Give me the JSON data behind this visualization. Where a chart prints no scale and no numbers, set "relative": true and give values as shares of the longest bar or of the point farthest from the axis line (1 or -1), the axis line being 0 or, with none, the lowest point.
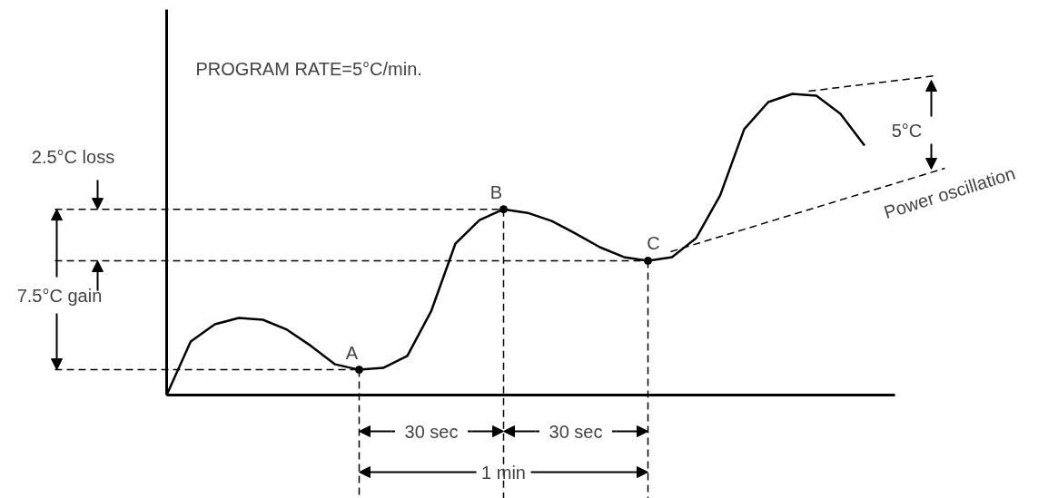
{
  "chart_data": {
    "type": "line",
    "relative": true,
    "tick_labels": false,
    "grid": false,
    "line_style": "solid",
    "marker": "none",
    "categories": [
      null,
      null,
      null,
      null,
      null,
      null,
      null,
      null,
      null,
      null,
      null,
      null,
      null,
      null,
      null,
      null,
      null,
      null,
      null,
      null,
      null,
      null,
      null,
      null,
      null,
      null,
      null,
      null,
      null,
      null
    ],
    "series": [
      {
        "color": "#000000",
        "values": [
          0,
          0.178,
          0.235,
          0.256,
          0.25,
          0.217,
          0.163,
          0.102,
          0.084,
          0.09,
          0.13,
          0.28,
          0.503,
          0.581,
          0.617,
          0.605,
          0.578,
          0.536,
          0.491,
          0.458,
          0.446,
          0.458,
          0.521,
          0.663,
          0.883,
          0.973,
          1.0,
          0.994,
          0.934,
          0.828
        ]
      }
    ],
    "ref_lines": [
      {
        "axis": "y",
        "value": 0.084,
        "line_style": "dashed"
      },
      {
        "axis": "y",
        "value": 0.617,
        "line_style": "dashed"
      },
      {
        "axis": "y",
        "value": 0.446,
        "line_style": "dashed"
      }
    ],
    "annotations": [
      "PROGRAM RATE=5°C/min.",
      "2.5°C loss",
      "7.5°C gain",
      "A",
      "B",
      "C",
      "30 sec",
      "30 sec",
      "1 min",
      "5°C",
      "Power oscillation"
    ]
  }
}
